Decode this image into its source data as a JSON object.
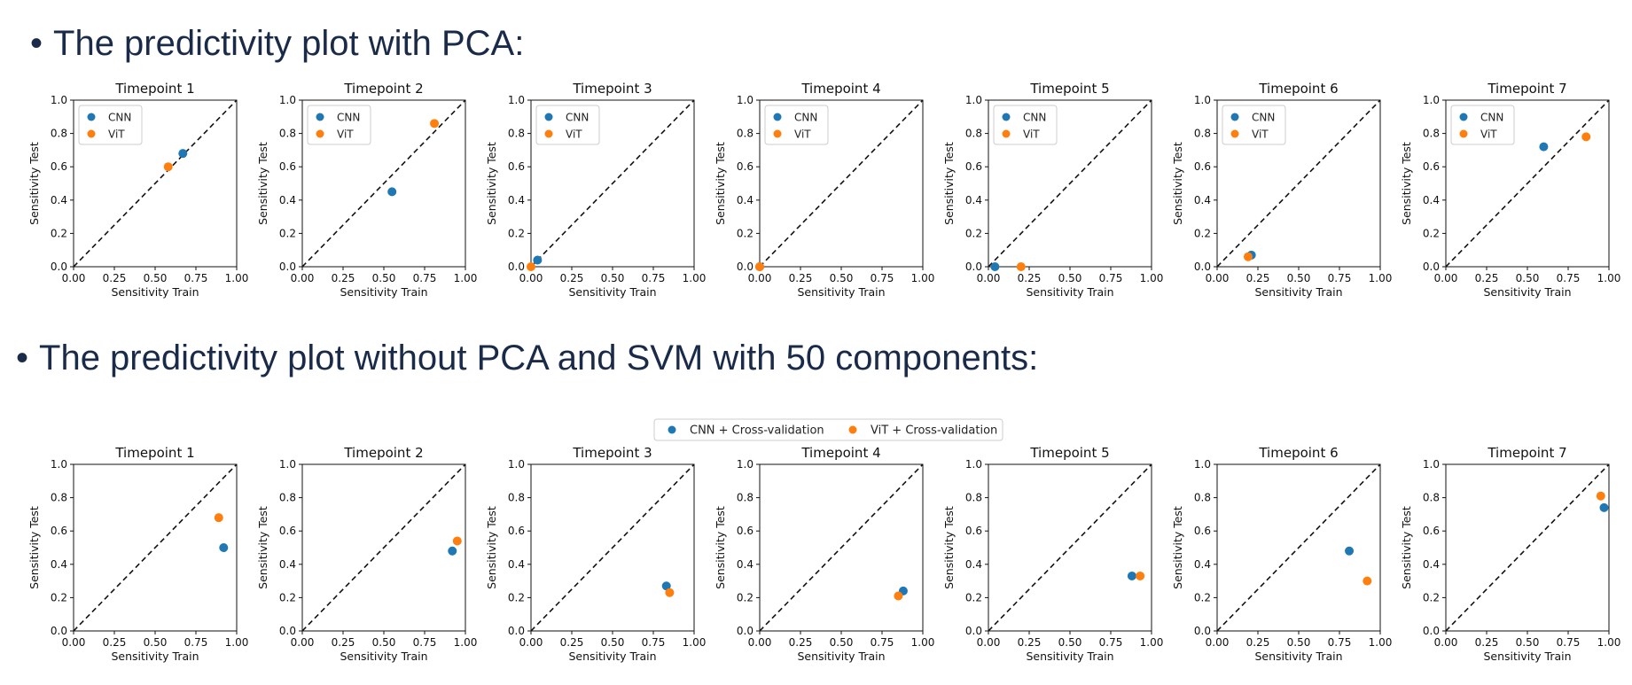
{
  "headings": {
    "top": "The predictivity plot with PCA:",
    "bottom": "The predictivity plot without PCA and SVM with 50 components:"
  },
  "colors": {
    "cnn": "#1f77b4",
    "vit": "#ff7f0e"
  },
  "chart_data": [
    {
      "group": "top",
      "legend_placement": "upper-left",
      "legend": [
        "CNN",
        "ViT"
      ],
      "charts": [
        {
          "type": "scatter",
          "title": "Timepoint 1",
          "xlabel": "Sensitivity Train",
          "ylabel": "Sensitivity Test",
          "xlim": [
            0,
            1
          ],
          "ylim": [
            0,
            1
          ],
          "xticks": [
            "0.00",
            "0.25",
            "0.50",
            "0.75",
            "1.00"
          ],
          "yticks": [
            "0.0",
            "0.2",
            "0.4",
            "0.6",
            "0.8",
            "1.0"
          ],
          "diagonal": true,
          "series": [
            {
              "name": "CNN",
              "points": [
                [
                  0.67,
                  0.68
                ]
              ]
            },
            {
              "name": "ViT",
              "points": [
                [
                  0.58,
                  0.6
                ]
              ]
            }
          ]
        },
        {
          "type": "scatter",
          "title": "Timepoint 2",
          "xlabel": "Sensitivity Train",
          "ylabel": "Sensitivity Test",
          "xlim": [
            0,
            1
          ],
          "ylim": [
            0,
            1
          ],
          "xticks": [
            "0.00",
            "0.25",
            "0.50",
            "0.75",
            "1.00"
          ],
          "yticks": [
            "0.0",
            "0.2",
            "0.4",
            "0.6",
            "0.8",
            "1.0"
          ],
          "diagonal": true,
          "series": [
            {
              "name": "CNN",
              "points": [
                [
                  0.55,
                  0.45
                ]
              ]
            },
            {
              "name": "ViT",
              "points": [
                [
                  0.81,
                  0.86
                ]
              ]
            }
          ]
        },
        {
          "type": "scatter",
          "title": "Timepoint 3",
          "xlabel": "Sensitivity Train",
          "ylabel": "Sensitivity Test",
          "xlim": [
            0,
            1
          ],
          "ylim": [
            0,
            1
          ],
          "xticks": [
            "0.00",
            "0.25",
            "0.50",
            "0.75",
            "1.00"
          ],
          "yticks": [
            "0.0",
            "0.2",
            "0.4",
            "0.6",
            "0.8",
            "1.0"
          ],
          "diagonal": true,
          "series": [
            {
              "name": "CNN",
              "points": [
                [
                  0.04,
                  0.04
                ]
              ]
            },
            {
              "name": "ViT",
              "points": [
                [
                  0.0,
                  0.0
                ]
              ]
            }
          ]
        },
        {
          "type": "scatter",
          "title": "Timepoint 4",
          "xlabel": "Sensitivity Train",
          "ylabel": "Sensitivity Test",
          "xlim": [
            0,
            1
          ],
          "ylim": [
            0,
            1
          ],
          "xticks": [
            "0.00",
            "0.25",
            "0.50",
            "0.75",
            "1.00"
          ],
          "yticks": [
            "0.0",
            "0.2",
            "0.4",
            "0.6",
            "0.8",
            "1.0"
          ],
          "diagonal": true,
          "series": [
            {
              "name": "CNN",
              "points": [
                [
                  0.0,
                  0.0
                ]
              ]
            },
            {
              "name": "ViT",
              "points": [
                [
                  0.0,
                  0.0
                ]
              ]
            }
          ]
        },
        {
          "type": "scatter",
          "title": "Timepoint 5",
          "xlabel": "Sensitivity Train",
          "ylabel": "Sensitivity Test",
          "xlim": [
            0,
            1
          ],
          "ylim": [
            0,
            1
          ],
          "xticks": [
            "0.00",
            "0.25",
            "0.50",
            "0.75",
            "1.00"
          ],
          "yticks": [
            "0.0",
            "0.2",
            "0.4",
            "0.6",
            "0.8",
            "1.0"
          ],
          "diagonal": true,
          "series": [
            {
              "name": "CNN",
              "points": [
                [
                  0.04,
                  0.0
                ]
              ]
            },
            {
              "name": "ViT",
              "points": [
                [
                  0.2,
                  0.0
                ]
              ]
            }
          ]
        },
        {
          "type": "scatter",
          "title": "Timepoint 6",
          "xlabel": "Sensitivity Train",
          "ylabel": "Sensitivity Test",
          "xlim": [
            0,
            1
          ],
          "ylim": [
            0,
            1
          ],
          "xticks": [
            "0.00",
            "0.25",
            "0.50",
            "0.75",
            "1.00"
          ],
          "yticks": [
            "0.0",
            "0.2",
            "0.4",
            "0.6",
            "0.8",
            "1.0"
          ],
          "diagonal": true,
          "series": [
            {
              "name": "CNN",
              "points": [
                [
                  0.21,
                  0.07
                ]
              ]
            },
            {
              "name": "ViT",
              "points": [
                [
                  0.19,
                  0.06
                ]
              ]
            }
          ]
        },
        {
          "type": "scatter",
          "title": "Timepoint 7",
          "xlabel": "Sensitivity Train",
          "ylabel": "Sensitivity Test",
          "xlim": [
            0,
            1
          ],
          "ylim": [
            0,
            1
          ],
          "xticks": [
            "0.00",
            "0.25",
            "0.50",
            "0.75",
            "1.00"
          ],
          "yticks": [
            "0.0",
            "0.2",
            "0.4",
            "0.6",
            "0.8",
            "1.0"
          ],
          "diagonal": true,
          "series": [
            {
              "name": "CNN",
              "points": [
                [
                  0.6,
                  0.72
                ]
              ]
            },
            {
              "name": "ViT",
              "points": [
                [
                  0.86,
                  0.78
                ]
              ]
            }
          ]
        }
      ]
    },
    {
      "group": "bottom",
      "legend_placement": "top-center",
      "legend": [
        "CNN + Cross-validation",
        "ViT + Cross-validation"
      ],
      "charts": [
        {
          "type": "scatter",
          "title": "Timepoint 1",
          "xlabel": "Sensitivity Train",
          "ylabel": "Sensitivity Test",
          "xlim": [
            0,
            1
          ],
          "ylim": [
            0,
            1
          ],
          "xticks": [
            "0.00",
            "0.25",
            "0.50",
            "0.75",
            "1.00"
          ],
          "yticks": [
            "0.0",
            "0.2",
            "0.4",
            "0.6",
            "0.8",
            "1.0"
          ],
          "diagonal": true,
          "series": [
            {
              "name": "CNN + Cross-validation",
              "points": [
                [
                  0.92,
                  0.5
                ]
              ]
            },
            {
              "name": "ViT + Cross-validation",
              "points": [
                [
                  0.89,
                  0.68
                ]
              ]
            }
          ]
        },
        {
          "type": "scatter",
          "title": "Timepoint 2",
          "xlabel": "Sensitivity Train",
          "ylabel": "Sensitivity Test",
          "xlim": [
            0,
            1
          ],
          "ylim": [
            0,
            1
          ],
          "xticks": [
            "0.00",
            "0.25",
            "0.50",
            "0.75",
            "1.00"
          ],
          "yticks": [
            "0.0",
            "0.2",
            "0.4",
            "0.6",
            "0.8",
            "1.0"
          ],
          "diagonal": true,
          "series": [
            {
              "name": "CNN + Cross-validation",
              "points": [
                [
                  0.92,
                  0.48
                ]
              ]
            },
            {
              "name": "ViT + Cross-validation",
              "points": [
                [
                  0.95,
                  0.54
                ]
              ]
            }
          ]
        },
        {
          "type": "scatter",
          "title": "Timepoint 3",
          "xlabel": "Sensitivity Train",
          "ylabel": "Sensitivity Test",
          "xlim": [
            0,
            1
          ],
          "ylim": [
            0,
            1
          ],
          "xticks": [
            "0.00",
            "0.25",
            "0.50",
            "0.75",
            "1.00"
          ],
          "yticks": [
            "0.0",
            "0.2",
            "0.4",
            "0.6",
            "0.8",
            "1.0"
          ],
          "diagonal": true,
          "series": [
            {
              "name": "CNN + Cross-validation",
              "points": [
                [
                  0.83,
                  0.27
                ]
              ]
            },
            {
              "name": "ViT + Cross-validation",
              "points": [
                [
                  0.85,
                  0.23
                ]
              ]
            }
          ]
        },
        {
          "type": "scatter",
          "title": "Timepoint 4",
          "xlabel": "Sensitivity Train",
          "ylabel": "Sensitivity Test",
          "xlim": [
            0,
            1
          ],
          "ylim": [
            0,
            1
          ],
          "xticks": [
            "0.00",
            "0.25",
            "0.50",
            "0.75",
            "1.00"
          ],
          "yticks": [
            "0.0",
            "0.2",
            "0.4",
            "0.6",
            "0.8",
            "1.0"
          ],
          "diagonal": true,
          "series": [
            {
              "name": "CNN + Cross-validation",
              "points": [
                [
                  0.88,
                  0.24
                ]
              ]
            },
            {
              "name": "ViT + Cross-validation",
              "points": [
                [
                  0.85,
                  0.21
                ]
              ]
            }
          ]
        },
        {
          "type": "scatter",
          "title": "Timepoint 5",
          "xlabel": "Sensitivity Train",
          "ylabel": "Sensitivity Test",
          "xlim": [
            0,
            1
          ],
          "ylim": [
            0,
            1
          ],
          "xticks": [
            "0.00",
            "0.25",
            "0.50",
            "0.75",
            "1.00"
          ],
          "yticks": [
            "0.0",
            "0.2",
            "0.4",
            "0.6",
            "0.8",
            "1.0"
          ],
          "diagonal": true,
          "series": [
            {
              "name": "CNN + Cross-validation",
              "points": [
                [
                  0.88,
                  0.33
                ]
              ]
            },
            {
              "name": "ViT + Cross-validation",
              "points": [
                [
                  0.93,
                  0.33
                ]
              ]
            }
          ]
        },
        {
          "type": "scatter",
          "title": "Timepoint 6",
          "xlabel": "Sensitivity Train",
          "ylabel": "Sensitivity Test",
          "xlim": [
            0,
            1
          ],
          "ylim": [
            0,
            1
          ],
          "xticks": [
            "0.00",
            "0.25",
            "0.50",
            "0.75",
            "1.00"
          ],
          "yticks": [
            "0.0",
            "0.2",
            "0.4",
            "0.6",
            "0.8",
            "1.0"
          ],
          "diagonal": true,
          "series": [
            {
              "name": "CNN + Cross-validation",
              "points": [
                [
                  0.81,
                  0.48
                ]
              ]
            },
            {
              "name": "ViT + Cross-validation",
              "points": [
                [
                  0.92,
                  0.3
                ]
              ]
            }
          ]
        },
        {
          "type": "scatter",
          "title": "Timepoint 7",
          "xlabel": "Sensitivity Train",
          "ylabel": "Sensitivity Test",
          "xlim": [
            0,
            1
          ],
          "ylim": [
            0,
            1
          ],
          "xticks": [
            "0.00",
            "0.25",
            "0.50",
            "0.75",
            "1.00"
          ],
          "yticks": [
            "0.0",
            "0.2",
            "0.4",
            "0.6",
            "0.8",
            "1.0"
          ],
          "diagonal": true,
          "series": [
            {
              "name": "CNN + Cross-validation",
              "points": [
                [
                  0.97,
                  0.74
                ]
              ]
            },
            {
              "name": "ViT + Cross-validation",
              "points": [
                [
                  0.95,
                  0.81
                ]
              ]
            }
          ]
        }
      ]
    }
  ]
}
